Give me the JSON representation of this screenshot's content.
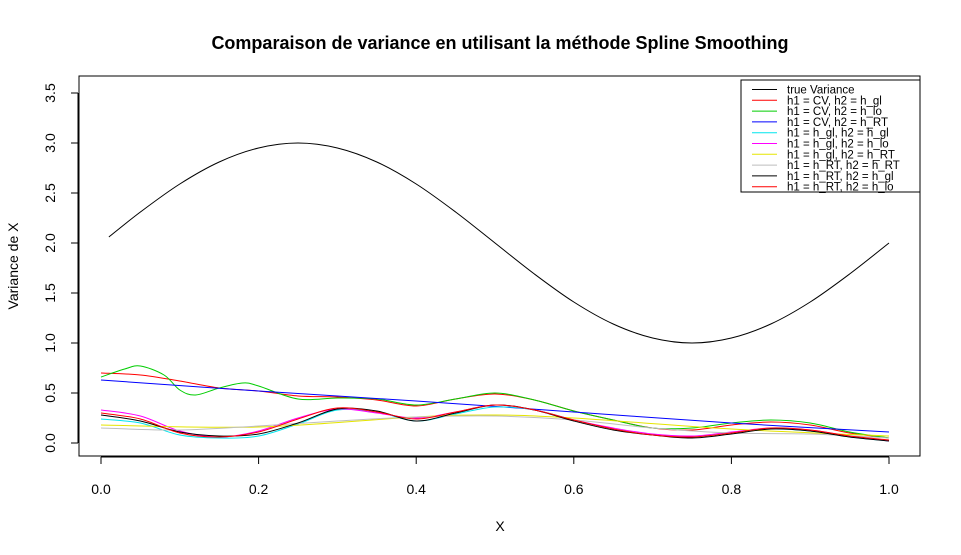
{
  "chart_data": {
    "type": "line",
    "title": "Comparaison de variance en utilisant la méthode Spline Smoothing",
    "xlabel": "X",
    "ylabel": "Variance de X",
    "xlim": [
      0,
      1
    ],
    "ylim": [
      0,
      3.5
    ],
    "xticks": [
      "0.0",
      "0.2",
      "0.4",
      "0.6",
      "0.8",
      "1.0"
    ],
    "yticks": [
      "0.0",
      "0.5",
      "1.0",
      "1.5",
      "2.0",
      "2.5",
      "3.0",
      "3.5"
    ],
    "grid": false,
    "legend_position": "top-right",
    "series": [
      {
        "name": "true Variance",
        "color": "#000000",
        "x": [
          0.01,
          0.05,
          0.1,
          0.15,
          0.2,
          0.25,
          0.3,
          0.35,
          0.4,
          0.45,
          0.5,
          0.55,
          0.6,
          0.65,
          0.7,
          0.75,
          0.8,
          0.85,
          0.9,
          0.95,
          1.0
        ],
        "y": [
          2.06,
          2.31,
          2.59,
          2.81,
          2.95,
          3.0,
          2.95,
          2.81,
          2.59,
          2.31,
          2.0,
          1.69,
          1.41,
          1.19,
          1.05,
          1.0,
          1.05,
          1.19,
          1.41,
          1.69,
          2.0
        ]
      },
      {
        "name": "h1 = CV, h2 = h_gl",
        "color": "#ff0000",
        "x": [
          0.0,
          0.05,
          0.1,
          0.15,
          0.2,
          0.25,
          0.3,
          0.35,
          0.4,
          0.45,
          0.5,
          0.55,
          0.6,
          0.65,
          0.7,
          0.75,
          0.8,
          0.85,
          0.9,
          0.95,
          1.0
        ],
        "y": [
          0.7,
          0.68,
          0.62,
          0.55,
          0.52,
          0.47,
          0.46,
          0.43,
          0.37,
          0.44,
          0.49,
          0.43,
          0.32,
          0.23,
          0.15,
          0.13,
          0.18,
          0.21,
          0.18,
          0.1,
          0.05
        ]
      },
      {
        "name": "h1 = CV, h2 = h_lo",
        "color": "#00cd00",
        "x": [
          0.0,
          0.03,
          0.05,
          0.08,
          0.1,
          0.12,
          0.15,
          0.18,
          0.2,
          0.25,
          0.3,
          0.35,
          0.4,
          0.45,
          0.5,
          0.55,
          0.6,
          0.65,
          0.7,
          0.75,
          0.8,
          0.85,
          0.9,
          0.95,
          1.0
        ],
        "y": [
          0.66,
          0.74,
          0.77,
          0.68,
          0.53,
          0.48,
          0.55,
          0.6,
          0.57,
          0.44,
          0.45,
          0.44,
          0.38,
          0.44,
          0.5,
          0.43,
          0.32,
          0.23,
          0.15,
          0.15,
          0.2,
          0.23,
          0.2,
          0.11,
          0.05
        ]
      },
      {
        "name": "h1 = CV, h2 = h_RT",
        "color": "#0000ff",
        "x": [
          0.0,
          0.2,
          0.4,
          0.6,
          0.8,
          1.0
        ],
        "y": [
          0.63,
          0.52,
          0.42,
          0.31,
          0.2,
          0.11
        ]
      },
      {
        "name": "h1 = h_gl, h2 = h_gl",
        "color": "#00e5ee",
        "x": [
          0.0,
          0.05,
          0.1,
          0.15,
          0.2,
          0.25,
          0.3,
          0.35,
          0.4,
          0.45,
          0.5,
          0.55,
          0.6,
          0.65,
          0.7,
          0.75,
          0.8,
          0.85,
          0.9,
          0.95,
          1.0
        ],
        "y": [
          0.24,
          0.2,
          0.08,
          0.05,
          0.07,
          0.19,
          0.33,
          0.31,
          0.22,
          0.29,
          0.36,
          0.33,
          0.23,
          0.14,
          0.08,
          0.06,
          0.1,
          0.14,
          0.12,
          0.06,
          0.02
        ]
      },
      {
        "name": "h1 = h_gl, h2 = h_lo",
        "color": "#ff00ff",
        "x": [
          0.0,
          0.05,
          0.1,
          0.15,
          0.2,
          0.25,
          0.3,
          0.35,
          0.4,
          0.45,
          0.5,
          0.55,
          0.6,
          0.65,
          0.7,
          0.75,
          0.8,
          0.85,
          0.9,
          0.95,
          1.0
        ],
        "y": [
          0.33,
          0.27,
          0.12,
          0.06,
          0.12,
          0.25,
          0.34,
          0.3,
          0.25,
          0.31,
          0.38,
          0.33,
          0.23,
          0.15,
          0.09,
          0.07,
          0.11,
          0.15,
          0.13,
          0.07,
          0.02
        ]
      },
      {
        "name": "h1 = h_gl, h2 = h_RT",
        "color": "#e5e500",
        "x": [
          0.0,
          0.2,
          0.4,
          0.5,
          0.6,
          0.8,
          1.0
        ],
        "y": [
          0.18,
          0.16,
          0.26,
          0.28,
          0.25,
          0.14,
          0.07
        ]
      },
      {
        "name": "h1 = h_RT, h2 = h_RT",
        "color": "#bebebe",
        "x": [
          0.0,
          0.1,
          0.2,
          0.3,
          0.4,
          0.5,
          0.6,
          0.7,
          0.8,
          0.9,
          1.0
        ],
        "y": [
          0.15,
          0.13,
          0.17,
          0.22,
          0.26,
          0.27,
          0.23,
          0.15,
          0.1,
          0.09,
          0.05
        ]
      },
      {
        "name": "h1 = h_RT, h2 = h_gl",
        "color": "#000000",
        "x": [
          0.0,
          0.05,
          0.1,
          0.15,
          0.2,
          0.25,
          0.3,
          0.35,
          0.4,
          0.45,
          0.5,
          0.55,
          0.6,
          0.65,
          0.7,
          0.75,
          0.8,
          0.85,
          0.9,
          0.95,
          1.0
        ],
        "y": [
          0.28,
          0.22,
          0.11,
          0.07,
          0.09,
          0.2,
          0.34,
          0.32,
          0.22,
          0.3,
          0.38,
          0.33,
          0.22,
          0.13,
          0.08,
          0.05,
          0.09,
          0.14,
          0.12,
          0.06,
          0.02
        ]
      },
      {
        "name": "h1 = h_RT, h2 = h_lo",
        "color": "#ff0000",
        "x": [
          0.0,
          0.05,
          0.1,
          0.15,
          0.2,
          0.25,
          0.3,
          0.35,
          0.4,
          0.45,
          0.5,
          0.55,
          0.6,
          0.65,
          0.7,
          0.75,
          0.8,
          0.85,
          0.9,
          0.95,
          1.0
        ],
        "y": [
          0.3,
          0.24,
          0.1,
          0.06,
          0.11,
          0.24,
          0.35,
          0.31,
          0.24,
          0.31,
          0.38,
          0.33,
          0.23,
          0.14,
          0.08,
          0.06,
          0.1,
          0.15,
          0.13,
          0.07,
          0.03
        ]
      }
    ]
  }
}
